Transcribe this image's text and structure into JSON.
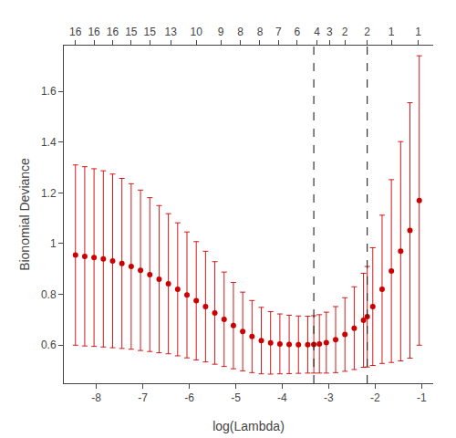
{
  "chart_data": {
    "type": "scatter",
    "xlabel": "log(Lambda)",
    "ylabel": "Bionomial Deviance",
    "x": [
      -8.45,
      -8.25,
      -8.05,
      -7.85,
      -7.65,
      -7.45,
      -7.25,
      -7.05,
      -6.85,
      -6.65,
      -6.45,
      -6.25,
      -6.05,
      -5.85,
      -5.65,
      -5.45,
      -5.25,
      -5.05,
      -4.85,
      -4.65,
      -4.45,
      -4.25,
      -4.05,
      -3.85,
      -3.65,
      -3.45,
      -3.32,
      -3.2,
      -3.05,
      -2.85,
      -2.65,
      -2.45,
      -2.25,
      -2.17,
      -2.05,
      -1.85,
      -1.65,
      -1.45,
      -1.25,
      -1.05
    ],
    "series": [
      {
        "color": "#cc0000",
        "marker": "circle",
        "values": [
          0.955,
          0.95,
          0.945,
          0.94,
          0.932,
          0.922,
          0.91,
          0.895,
          0.878,
          0.86,
          0.842,
          0.82,
          0.798,
          0.775,
          0.752,
          0.727,
          0.702,
          0.677,
          0.654,
          0.634,
          0.618,
          0.609,
          0.605,
          0.603,
          0.602,
          0.602,
          0.603,
          0.605,
          0.61,
          0.622,
          0.642,
          0.667,
          0.698,
          0.712,
          0.752,
          0.82,
          0.892,
          0.97,
          1.052,
          1.17
        ],
        "yerr": [
          0.355,
          0.353,
          0.35,
          0.347,
          0.342,
          0.335,
          0.326,
          0.316,
          0.303,
          0.29,
          0.276,
          0.262,
          0.248,
          0.233,
          0.218,
          0.202,
          0.186,
          0.17,
          0.155,
          0.142,
          0.131,
          0.123,
          0.118,
          0.115,
          0.113,
          0.112,
          0.113,
          0.115,
          0.12,
          0.13,
          0.145,
          0.163,
          0.185,
          0.198,
          0.232,
          0.292,
          0.36,
          0.432,
          0.503,
          0.57
        ]
      }
    ],
    "xlim": [
      -8.7,
      -0.75
    ],
    "xticks": [
      -8,
      -7,
      -6,
      -5,
      -4,
      -3,
      -2,
      -1
    ],
    "ylim": [
      0.45,
      1.78
    ],
    "yticks": [
      0.6,
      0.8,
      1.0,
      1.2,
      1.4,
      1.6
    ],
    "x2lim": [
      -8.7,
      -0.75
    ],
    "x2ticks": [
      {
        "value": -8.45,
        "label": "16"
      },
      {
        "value": -8.05,
        "label": "16"
      },
      {
        "value": -7.65,
        "label": "16"
      },
      {
        "value": -7.25,
        "label": "15"
      },
      {
        "value": -6.85,
        "label": "15"
      },
      {
        "value": -6.4,
        "label": "13"
      },
      {
        "value": -5.85,
        "label": "10"
      },
      {
        "value": -5.32,
        "label": "9"
      },
      {
        "value": -4.9,
        "label": "8"
      },
      {
        "value": -4.48,
        "label": "8"
      },
      {
        "value": -4.08,
        "label": "7"
      },
      {
        "value": -3.68,
        "label": "6"
      },
      {
        "value": -3.25,
        "label": "4"
      },
      {
        "value": -2.98,
        "label": "3"
      },
      {
        "value": -2.65,
        "label": "2"
      },
      {
        "value": -2.17,
        "label": "2"
      },
      {
        "value": -1.65,
        "label": "1"
      },
      {
        "value": -1.07,
        "label": "1"
      }
    ],
    "vlines": [
      -3.32,
      -2.17
    ],
    "grid": false
  }
}
